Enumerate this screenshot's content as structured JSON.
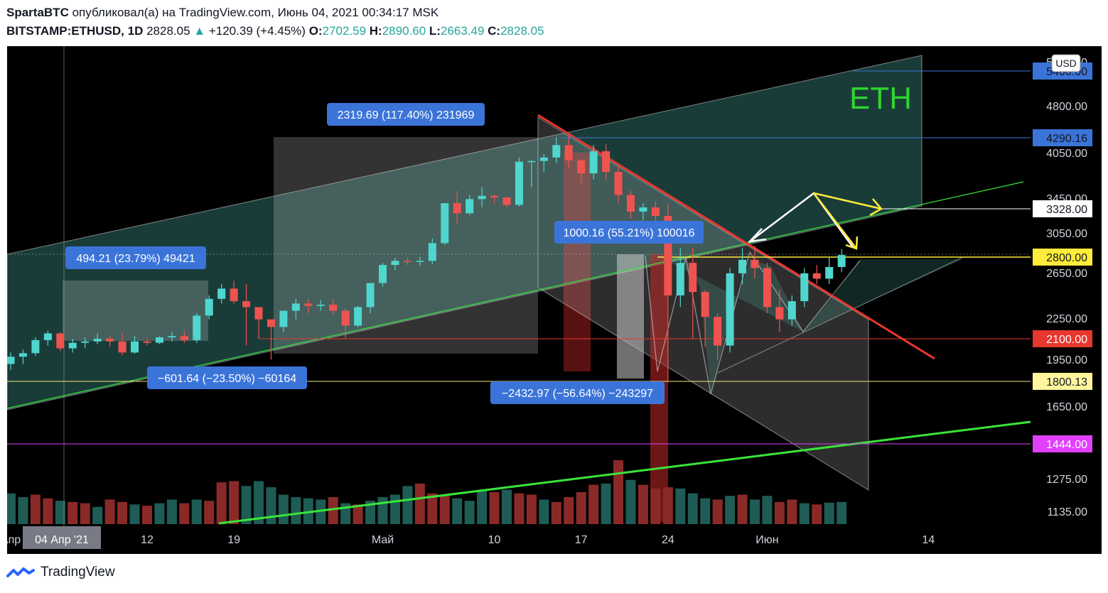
{
  "header": {
    "author": "SpartaBTC",
    "published_text": "опубликовал(а) на TradingView.com, Июнь 04, 2021 00:34:17 MSK",
    "symbol": "BITSTAMP:ETHUSD, 1D",
    "last": "2828.05",
    "arrow": "▲",
    "change": "+120.39 (+4.45%)",
    "o_label": "O:",
    "o_value": "2702.59",
    "h_label": "H:",
    "h_value": "2890.60",
    "l_label": "L:",
    "l_value": "2663.49",
    "c_label": "C:",
    "c_value": "2828.05"
  },
  "footer": {
    "brand": "TradingView"
  },
  "colors": {
    "background": "#000000",
    "bull": "#4fd6cf",
    "bear": "#ef5350",
    "vol_bull": "#1e5c55",
    "vol_bear": "#8a2a28",
    "blue_label": "#3b74d9",
    "green_line": "#39e639",
    "red_line": "#e8372f",
    "yellow": "#ffeb3b",
    "magenta": "#e040fb",
    "eth_text": "#2fd32f"
  },
  "chart_data": {
    "type": "candlestick",
    "symbol": "ETHUSD",
    "currency": "USD",
    "title": "ETH",
    "x_tick_labels": [
      {
        "label": "Апр",
        "day": 0
      },
      {
        "label": "12",
        "day": 11
      },
      {
        "label": "19",
        "day": 18
      },
      {
        "label": "Май",
        "day": 30
      },
      {
        "label": "10",
        "day": 39
      },
      {
        "label": "17",
        "day": 46
      },
      {
        "label": "24",
        "day": 53
      },
      {
        "label": "Июн",
        "day": 61
      },
      {
        "label": "14",
        "day": 74
      }
    ],
    "crosshair_label": "04 Апр '21",
    "y_tick_labels": [
      "5400.00",
      "4800.00",
      "4050.00",
      "3450.00",
      "3050.00",
      "2650.00",
      "2250.00",
      "1950.00",
      "1650.00",
      "1275.00",
      "1135.00"
    ],
    "price_tags": [
      {
        "label": "5400.00",
        "style": "blue"
      },
      {
        "label": "4290.16",
        "style": "blue"
      },
      {
        "label": "3328.00",
        "style": "white"
      },
      {
        "label": "2800.00",
        "style": "yellow"
      },
      {
        "label": "2100.00",
        "style": "red"
      },
      {
        "label": "1800.13",
        "style": "yellow-light"
      },
      {
        "label": "1444.00",
        "style": "magenta"
      }
    ],
    "measure_labels": [
      {
        "text": "2319.69 (117.40%) 231969"
      },
      {
        "text": "494.21 (23.79%) 49421"
      },
      {
        "text": "1000.16 (55.21%) 100016"
      },
      {
        "text": "−601.64 (−23.50%) −60164"
      },
      {
        "text": "−2432.97 (−56.64%) −243297"
      }
    ],
    "candles": [
      [
        1920,
        2000,
        1880,
        1970
      ],
      [
        1970,
        2020,
        1920,
        1995
      ],
      [
        1995,
        2110,
        1975,
        2090
      ],
      [
        2090,
        2160,
        2050,
        2140
      ],
      [
        2140,
        2150,
        2010,
        2030
      ],
      [
        2030,
        2100,
        2000,
        2070
      ],
      [
        2070,
        2110,
        2030,
        2080
      ],
      [
        2080,
        2140,
        2060,
        2100
      ],
      [
        2100,
        2120,
        2040,
        2080
      ],
      [
        2080,
        2140,
        1980,
        2000
      ],
      [
        2000,
        2120,
        1990,
        2080
      ],
      [
        2080,
        2100,
        2050,
        2070
      ],
      [
        2070,
        2120,
        2060,
        2110
      ],
      [
        2110,
        2150,
        2080,
        2120
      ],
      [
        2120,
        2160,
        2070,
        2090
      ],
      [
        2090,
        2300,
        2070,
        2280
      ],
      [
        2280,
        2450,
        2250,
        2420
      ],
      [
        2420,
        2550,
        2380,
        2510
      ],
      [
        2510,
        2580,
        2380,
        2400
      ],
      [
        2400,
        2550,
        2050,
        2350
      ],
      [
        2350,
        2350,
        2100,
        2250
      ],
      [
        2250,
        2240,
        1950,
        2190
      ],
      [
        2190,
        2320,
        2150,
        2320
      ],
      [
        2320,
        2420,
        2250,
        2380
      ],
      [
        2380,
        2420,
        2300,
        2360
      ],
      [
        2360,
        2410,
        2320,
        2370
      ],
      [
        2370,
        2420,
        2290,
        2320
      ],
      [
        2320,
        2340,
        2100,
        2200
      ],
      [
        2200,
        2360,
        2190,
        2350
      ],
      [
        2350,
        2560,
        2300,
        2560
      ],
      [
        2560,
        2750,
        2530,
        2730
      ],
      [
        2730,
        2800,
        2680,
        2770
      ],
      [
        2770,
        2800,
        2730,
        2760
      ],
      [
        2760,
        2810,
        2720,
        2770
      ],
      [
        2770,
        3000,
        2740,
        2950
      ],
      [
        2950,
        3400,
        2930,
        3400
      ],
      [
        3400,
        3550,
        3150,
        3280
      ],
      [
        3280,
        3500,
        3260,
        3450
      ],
      [
        3450,
        3600,
        3350,
        3490
      ],
      [
        3490,
        3500,
        3400,
        3470
      ],
      [
        3470,
        3480,
        3350,
        3380
      ],
      [
        3380,
        4000,
        3360,
        3940
      ],
      [
        3940,
        3960,
        3600,
        3950
      ],
      [
        3950,
        4050,
        3800,
        4000
      ],
      [
        4000,
        4300,
        3920,
        4180
      ],
      [
        4180,
        4350,
        3850,
        3960
      ],
      [
        3960,
        3980,
        3650,
        3780
      ],
      [
        3780,
        4180,
        3700,
        4090
      ],
      [
        4090,
        4200,
        3700,
        3800
      ],
      [
        3800,
        3900,
        3400,
        3500
      ],
      [
        3500,
        3550,
        3220,
        3300
      ],
      [
        3300,
        3400,
        3200,
        3350
      ],
      [
        3350,
        3420,
        3000,
        3250
      ],
      [
        3250,
        3400,
        1800,
        2450
      ],
      [
        2450,
        2900,
        2350,
        2750
      ],
      [
        2750,
        2900,
        2100,
        2480
      ],
      [
        2480,
        2500,
        2040,
        2270
      ],
      [
        2270,
        2300,
        1950,
        2050
      ],
      [
        2050,
        2700,
        2000,
        2650
      ],
      [
        2650,
        2900,
        2550,
        2780
      ],
      [
        2780,
        2920,
        2600,
        2700
      ],
      [
        2700,
        2750,
        2300,
        2350
      ],
      [
        2350,
        2500,
        2150,
        2250
      ],
      [
        2250,
        2450,
        2200,
        2400
      ],
      [
        2400,
        2700,
        2350,
        2650
      ],
      [
        2650,
        2730,
        2550,
        2600
      ],
      [
        2600,
        2800,
        2550,
        2710
      ],
      [
        2710,
        2890,
        2660,
        2828
      ]
    ],
    "volume": [
      [
        250,
        1
      ],
      [
        220,
        1
      ],
      [
        240,
        0
      ],
      [
        210,
        0
      ],
      [
        190,
        1
      ],
      [
        180,
        0
      ],
      [
        170,
        0
      ],
      [
        140,
        1
      ],
      [
        200,
        0
      ],
      [
        180,
        0
      ],
      [
        160,
        1
      ],
      [
        150,
        0
      ],
      [
        170,
        1
      ],
      [
        200,
        1
      ],
      [
        170,
        0
      ],
      [
        200,
        1
      ],
      [
        190,
        0
      ],
      [
        340,
        0
      ],
      [
        350,
        0
      ],
      [
        310,
        1
      ],
      [
        350,
        1
      ],
      [
        300,
        1
      ],
      [
        240,
        1
      ],
      [
        220,
        1
      ],
      [
        210,
        1
      ],
      [
        200,
        1
      ],
      [
        220,
        0
      ],
      [
        170,
        1
      ],
      [
        160,
        0
      ],
      [
        190,
        1
      ],
      [
        220,
        1
      ],
      [
        240,
        1
      ],
      [
        310,
        1
      ],
      [
        330,
        0
      ],
      [
        250,
        0
      ],
      [
        230,
        0
      ],
      [
        210,
        1
      ],
      [
        190,
        1
      ],
      [
        280,
        1
      ],
      [
        260,
        0
      ],
      [
        280,
        1
      ],
      [
        250,
        0
      ],
      [
        240,
        0
      ],
      [
        200,
        1
      ],
      [
        180,
        0
      ],
      [
        220,
        0
      ],
      [
        260,
        0
      ],
      [
        320,
        0
      ],
      [
        330,
        1
      ],
      [
        520,
        0
      ],
      [
        360,
        1
      ],
      [
        320,
        0
      ],
      [
        290,
        0
      ],
      [
        300,
        0
      ],
      [
        290,
        1
      ],
      [
        250,
        1
      ],
      [
        210,
        1
      ],
      [
        200,
        0
      ],
      [
        230,
        1
      ],
      [
        240,
        0
      ],
      [
        200,
        1
      ],
      [
        230,
        1
      ],
      [
        180,
        0
      ],
      [
        200,
        0
      ],
      [
        170,
        1
      ],
      [
        160,
        0
      ],
      [
        175,
        1
      ],
      [
        180,
        1
      ]
    ],
    "volume_axis_labels": [
      "1275.00",
      "1135.00"
    ],
    "y_range": [
      1100,
      5600
    ],
    "log_scale": true,
    "grid": false
  }
}
